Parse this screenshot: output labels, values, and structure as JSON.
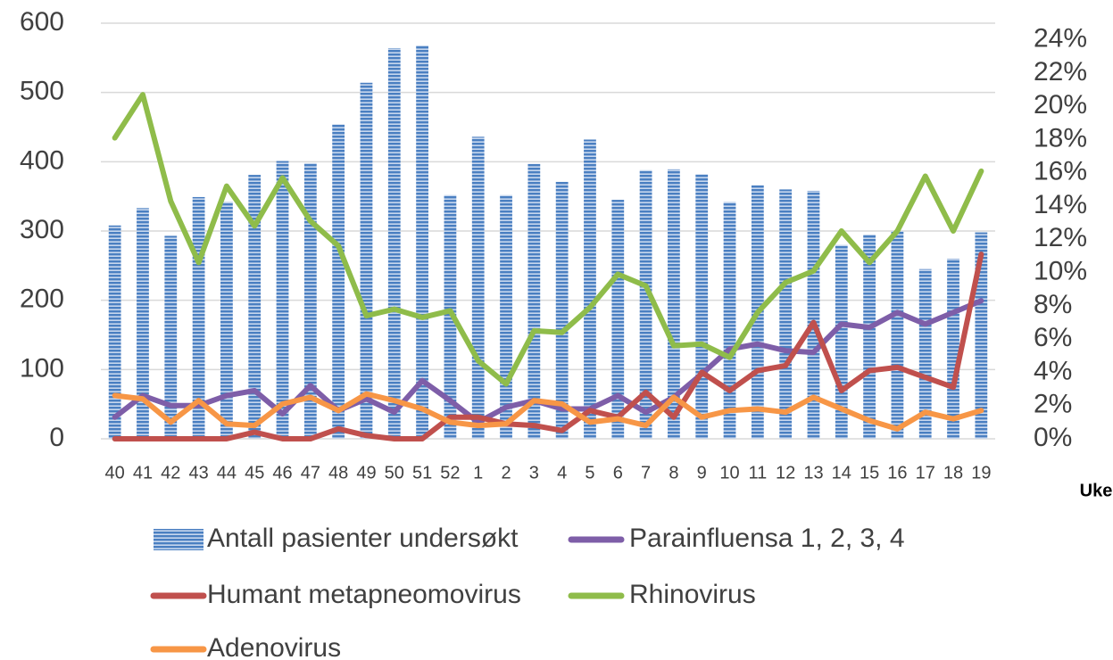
{
  "chart_data": {
    "type": "bar_line",
    "x_label": "Uke",
    "categories": [
      "40",
      "41",
      "42",
      "43",
      "44",
      "45",
      "46",
      "47",
      "48",
      "49",
      "50",
      "51",
      "52",
      "1",
      "2",
      "3",
      "4",
      "5",
      "6",
      "7",
      "8",
      "9",
      "10",
      "11",
      "12",
      "13",
      "14",
      "15",
      "16",
      "17",
      "18",
      "19"
    ],
    "ylim": [
      0,
      600
    ],
    "yticks": [
      0,
      100,
      200,
      300,
      400,
      500,
      600
    ],
    "y2lim": [
      0,
      25
    ],
    "y2ticks": [
      {
        "value": 0,
        "label": "0%"
      },
      {
        "value": 2,
        "label": "2%"
      },
      {
        "value": 4,
        "label": "4%"
      },
      {
        "value": 6,
        "label": "6%"
      },
      {
        "value": 8,
        "label": "8%"
      },
      {
        "value": 10,
        "label": "10%"
      },
      {
        "value": 12,
        "label": "12%"
      },
      {
        "value": 14,
        "label": "14%"
      },
      {
        "value": 16,
        "label": "16%"
      },
      {
        "value": 18,
        "label": "18%"
      },
      {
        "value": 20,
        "label": "20%"
      },
      {
        "value": 22,
        "label": "22%"
      },
      {
        "value": 24,
        "label": "24%"
      }
    ],
    "grid": true,
    "legend": "bottom",
    "series": [
      {
        "name": "Antall pasienter undersøkt",
        "type": "bar",
        "color": "#4a7fc1",
        "values": [
          308,
          333,
          293,
          349,
          342,
          381,
          401,
          398,
          454,
          514,
          564,
          568,
          352,
          436,
          352,
          397,
          371,
          432,
          345,
          388,
          389,
          382,
          342,
          366,
          360,
          358,
          280,
          295,
          300,
          245,
          260,
          298
        ]
      },
      {
        "name": "Parainfluensa 1, 2, 3, 4",
        "type": "line",
        "axis": "y2",
        "color": "#7e5ea8",
        "values": [
          1.3,
          2.6,
          2.0,
          2.0,
          2.6,
          2.9,
          1.5,
          3.2,
          1.7,
          2.4,
          1.6,
          3.5,
          2.3,
          1.0,
          1.9,
          2.3,
          1.8,
          1.8,
          2.6,
          1.6,
          2.5,
          3.9,
          5.4,
          5.7,
          5.3,
          5.2,
          6.9,
          6.7,
          7.6,
          6.9,
          7.6,
          8.3
        ]
      },
      {
        "name": "Humant metapneomovirus",
        "type": "line",
        "axis": "y2",
        "color": "#c0504d",
        "values": [
          0,
          0,
          0,
          0,
          0,
          0.4,
          0,
          0,
          0.6,
          0.2,
          0,
          0,
          1.3,
          1.3,
          0.9,
          0.8,
          0.5,
          1.7,
          1.3,
          2.8,
          1.3,
          4.0,
          2.9,
          4.1,
          4.4,
          7.0,
          2.9,
          4.1,
          4.3,
          3.7,
          3.1,
          11.1
        ]
      },
      {
        "name": "Rhinovirus",
        "type": "line",
        "axis": "y2",
        "color": "#8fbc4a",
        "values": [
          18.1,
          20.7,
          14.3,
          10.6,
          15.2,
          12.8,
          15.7,
          13.1,
          11.6,
          7.4,
          7.8,
          7.3,
          7.7,
          4.7,
          3.3,
          6.5,
          6.4,
          7.9,
          9.9,
          9.2,
          5.6,
          5.7,
          4.9,
          7.6,
          9.4,
          10.1,
          12.5,
          10.6,
          12.5,
          15.8,
          12.5,
          16.1
        ]
      },
      {
        "name": "Adenovirus",
        "type": "line",
        "axis": "y2",
        "color": "#f79646",
        "values": [
          2.6,
          2.4,
          1.0,
          2.3,
          0.9,
          0.8,
          2.1,
          2.5,
          1.7,
          2.7,
          2.3,
          1.8,
          1.0,
          0.8,
          0.9,
          2.3,
          2.1,
          1.0,
          1.2,
          0.8,
          2.5,
          1.3,
          1.7,
          1.8,
          1.6,
          2.5,
          1.8,
          1.1,
          0.6,
          1.6,
          1.2,
          1.7
        ]
      }
    ]
  }
}
